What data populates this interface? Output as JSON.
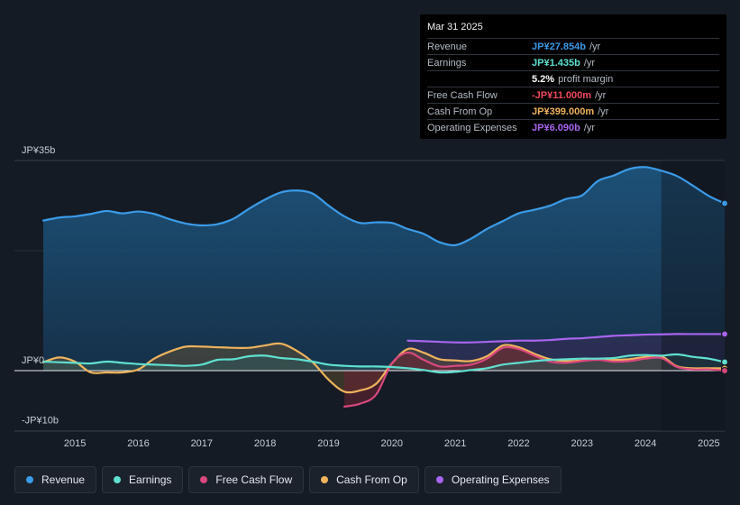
{
  "tooltip": {
    "date": "Mar 31 2025",
    "rows": [
      {
        "label": "Revenue",
        "value": "JP¥27.854b",
        "unit": "/yr",
        "color": "#3b9be8"
      },
      {
        "label": "Earnings",
        "value": "JP¥1.435b",
        "unit": "/yr",
        "color": "#5fe0d0"
      },
      {
        "label": "",
        "value": "5.2%",
        "unit": "profit margin",
        "color": "#ffffff"
      },
      {
        "label": "Free Cash Flow",
        "value": "-JP¥11.000m",
        "unit": "/yr",
        "color": "#ef4a5a"
      },
      {
        "label": "Cash From Op",
        "value": "JP¥399.000m",
        "unit": "/yr",
        "color": "#efb35c"
      },
      {
        "label": "Operating Expenses",
        "value": "JP¥6.090b",
        "unit": "/yr",
        "color": "#a865ef"
      }
    ]
  },
  "legend": [
    {
      "label": "Revenue",
      "color": "#3b9be8"
    },
    {
      "label": "Earnings",
      "color": "#5fe0d0"
    },
    {
      "label": "Free Cash Flow",
      "color": "#d9487e"
    },
    {
      "label": "Cash From Op",
      "color": "#efb35c"
    },
    {
      "label": "Operating Expenses",
      "color": "#a865ef"
    }
  ],
  "chart_data": {
    "type": "area",
    "title": "",
    "ylabel": "",
    "ylim": [
      -10,
      35
    ],
    "y_tick_labels": [
      {
        "value": 35,
        "label": "JP¥35b"
      },
      {
        "value": 0,
        "label": "JP¥0"
      },
      {
        "value": -10,
        "label": "-JP¥10b"
      }
    ],
    "x_tick_labels": [
      "2015",
      "2016",
      "2017",
      "2018",
      "2019",
      "2020",
      "2021",
      "2022",
      "2023",
      "2024",
      "2025"
    ],
    "xlim": [
      2014.5,
      2025.25
    ],
    "forecast_start": 2024.25,
    "series": [
      {
        "name": "Revenue",
        "color": "#3b9be8",
        "points": [
          [
            2014.5,
            25
          ],
          [
            2014.75,
            25.5
          ],
          [
            2015.0,
            25.7
          ],
          [
            2015.25,
            26.1
          ],
          [
            2015.5,
            26.6
          ],
          [
            2015.75,
            26.2
          ],
          [
            2016.0,
            26.5
          ],
          [
            2016.25,
            26.1
          ],
          [
            2016.5,
            25.2
          ],
          [
            2016.75,
            24.5
          ],
          [
            2017.0,
            24.2
          ],
          [
            2017.25,
            24.4
          ],
          [
            2017.5,
            25.3
          ],
          [
            2017.75,
            27.0
          ],
          [
            2018.0,
            28.5
          ],
          [
            2018.25,
            29.7
          ],
          [
            2018.5,
            30.0
          ],
          [
            2018.75,
            29.5
          ],
          [
            2019.0,
            27.5
          ],
          [
            2019.25,
            25.7
          ],
          [
            2019.5,
            24.6
          ],
          [
            2019.75,
            24.7
          ],
          [
            2020.0,
            24.6
          ],
          [
            2020.25,
            23.6
          ],
          [
            2020.5,
            22.8
          ],
          [
            2020.75,
            21.4
          ],
          [
            2021.0,
            20.9
          ],
          [
            2021.25,
            22.0
          ],
          [
            2021.5,
            23.6
          ],
          [
            2021.75,
            24.9
          ],
          [
            2022.0,
            26.2
          ],
          [
            2022.25,
            26.8
          ],
          [
            2022.5,
            27.5
          ],
          [
            2022.75,
            28.6
          ],
          [
            2023.0,
            29.2
          ],
          [
            2023.25,
            31.6
          ],
          [
            2023.5,
            32.5
          ],
          [
            2023.75,
            33.6
          ],
          [
            2024.0,
            33.9
          ],
          [
            2024.25,
            33.3
          ],
          [
            2024.5,
            32.4
          ],
          [
            2024.75,
            30.8
          ],
          [
            2025.0,
            29.1
          ],
          [
            2025.25,
            27.854
          ]
        ]
      },
      {
        "name": "Earnings",
        "color": "#5fe0d0",
        "points": [
          [
            2014.5,
            1.5
          ],
          [
            2014.75,
            1.4
          ],
          [
            2015.0,
            1.3
          ],
          [
            2015.25,
            1.2
          ],
          [
            2015.5,
            1.5
          ],
          [
            2015.75,
            1.3
          ],
          [
            2016.0,
            1.1
          ],
          [
            2016.25,
            1.0
          ],
          [
            2016.5,
            0.9
          ],
          [
            2016.75,
            0.8
          ],
          [
            2017.0,
            1.0
          ],
          [
            2017.25,
            1.8
          ],
          [
            2017.5,
            1.9
          ],
          [
            2017.75,
            2.4
          ],
          [
            2018.0,
            2.5
          ],
          [
            2018.25,
            2.1
          ],
          [
            2018.5,
            1.9
          ],
          [
            2018.75,
            1.5
          ],
          [
            2019.0,
            1.0
          ],
          [
            2019.25,
            0.8
          ],
          [
            2019.5,
            0.7
          ],
          [
            2019.75,
            0.7
          ],
          [
            2020.0,
            0.6
          ],
          [
            2020.25,
            0.4
          ],
          [
            2020.5,
            0.1
          ],
          [
            2020.75,
            -0.3
          ],
          [
            2021.0,
            -0.2
          ],
          [
            2021.25,
            0.1
          ],
          [
            2021.5,
            0.4
          ],
          [
            2021.75,
            1.0
          ],
          [
            2022.0,
            1.3
          ],
          [
            2022.25,
            1.6
          ],
          [
            2022.5,
            1.8
          ],
          [
            2022.75,
            1.9
          ],
          [
            2023.0,
            2.0
          ],
          [
            2023.25,
            2.0
          ],
          [
            2023.5,
            2.1
          ],
          [
            2023.75,
            2.5
          ],
          [
            2024.0,
            2.6
          ],
          [
            2024.25,
            2.5
          ],
          [
            2024.5,
            2.7
          ],
          [
            2024.75,
            2.3
          ],
          [
            2025.0,
            2.0
          ],
          [
            2025.25,
            1.435
          ]
        ]
      },
      {
        "name": "Free Cash Flow",
        "color": "#d9487e",
        "points": [
          [
            2019.25,
            -6.0
          ],
          [
            2019.5,
            -5.5
          ],
          [
            2019.75,
            -4.0
          ],
          [
            2020.0,
            1.2
          ],
          [
            2020.25,
            3.0
          ],
          [
            2020.5,
            1.8
          ],
          [
            2020.75,
            0.7
          ],
          [
            2021.0,
            0.8
          ],
          [
            2021.25,
            1.0
          ],
          [
            2021.5,
            2.0
          ],
          [
            2021.75,
            3.8
          ],
          [
            2022.0,
            3.6
          ],
          [
            2022.25,
            2.5
          ],
          [
            2022.5,
            1.5
          ],
          [
            2022.75,
            1.3
          ],
          [
            2023.0,
            1.6
          ],
          [
            2023.25,
            1.8
          ],
          [
            2023.5,
            1.5
          ],
          [
            2023.75,
            1.6
          ],
          [
            2024.0,
            2.0
          ],
          [
            2024.25,
            2.1
          ],
          [
            2024.5,
            0.6
          ],
          [
            2024.75,
            0.2
          ],
          [
            2025.0,
            0.2
          ],
          [
            2025.25,
            -0.011
          ]
        ]
      },
      {
        "name": "Cash From Op",
        "color": "#efb35c",
        "points": [
          [
            2014.5,
            1.4
          ],
          [
            2014.75,
            2.2
          ],
          [
            2015.0,
            1.5
          ],
          [
            2015.25,
            -0.3
          ],
          [
            2015.5,
            -0.3
          ],
          [
            2015.75,
            -0.3
          ],
          [
            2016.0,
            0.2
          ],
          [
            2016.25,
            2.0
          ],
          [
            2016.5,
            3.2
          ],
          [
            2016.75,
            4.0
          ],
          [
            2017.0,
            4.0
          ],
          [
            2017.25,
            3.9
          ],
          [
            2017.5,
            3.8
          ],
          [
            2017.75,
            3.8
          ],
          [
            2018.0,
            4.2
          ],
          [
            2018.25,
            4.5
          ],
          [
            2018.5,
            3.3
          ],
          [
            2018.75,
            1.4
          ],
          [
            2019.0,
            -1.5
          ],
          [
            2019.25,
            -3.5
          ],
          [
            2019.5,
            -3.3
          ],
          [
            2019.75,
            -2.2
          ],
          [
            2020.0,
            1.2
          ],
          [
            2020.25,
            3.6
          ],
          [
            2020.5,
            3.0
          ],
          [
            2020.75,
            1.9
          ],
          [
            2021.0,
            1.7
          ],
          [
            2021.25,
            1.6
          ],
          [
            2021.5,
            2.4
          ],
          [
            2021.75,
            4.2
          ],
          [
            2022.0,
            3.9
          ],
          [
            2022.25,
            2.8
          ],
          [
            2022.5,
            1.9
          ],
          [
            2022.75,
            1.6
          ],
          [
            2023.0,
            1.7
          ],
          [
            2023.25,
            1.9
          ],
          [
            2023.5,
            1.8
          ],
          [
            2023.75,
            1.9
          ],
          [
            2024.0,
            2.3
          ],
          [
            2024.25,
            2.4
          ],
          [
            2024.5,
            0.7
          ],
          [
            2024.75,
            0.4
          ],
          [
            2025.0,
            0.4
          ],
          [
            2025.25,
            0.399
          ]
        ]
      },
      {
        "name": "Operating Expenses",
        "color": "#a865ef",
        "points": [
          [
            2020.25,
            5.0
          ],
          [
            2020.5,
            4.9
          ],
          [
            2020.75,
            4.8
          ],
          [
            2021.0,
            4.7
          ],
          [
            2021.25,
            4.7
          ],
          [
            2021.5,
            4.8
          ],
          [
            2021.75,
            4.9
          ],
          [
            2022.0,
            5.0
          ],
          [
            2022.25,
            5.0
          ],
          [
            2022.5,
            5.1
          ],
          [
            2022.75,
            5.3
          ],
          [
            2023.0,
            5.4
          ],
          [
            2023.25,
            5.6
          ],
          [
            2023.5,
            5.8
          ],
          [
            2023.75,
            5.9
          ],
          [
            2024.0,
            6.0
          ],
          [
            2024.25,
            6.05
          ],
          [
            2024.5,
            6.1
          ],
          [
            2024.75,
            6.09
          ],
          [
            2025.0,
            6.09
          ],
          [
            2025.25,
            6.09
          ]
        ]
      }
    ]
  }
}
